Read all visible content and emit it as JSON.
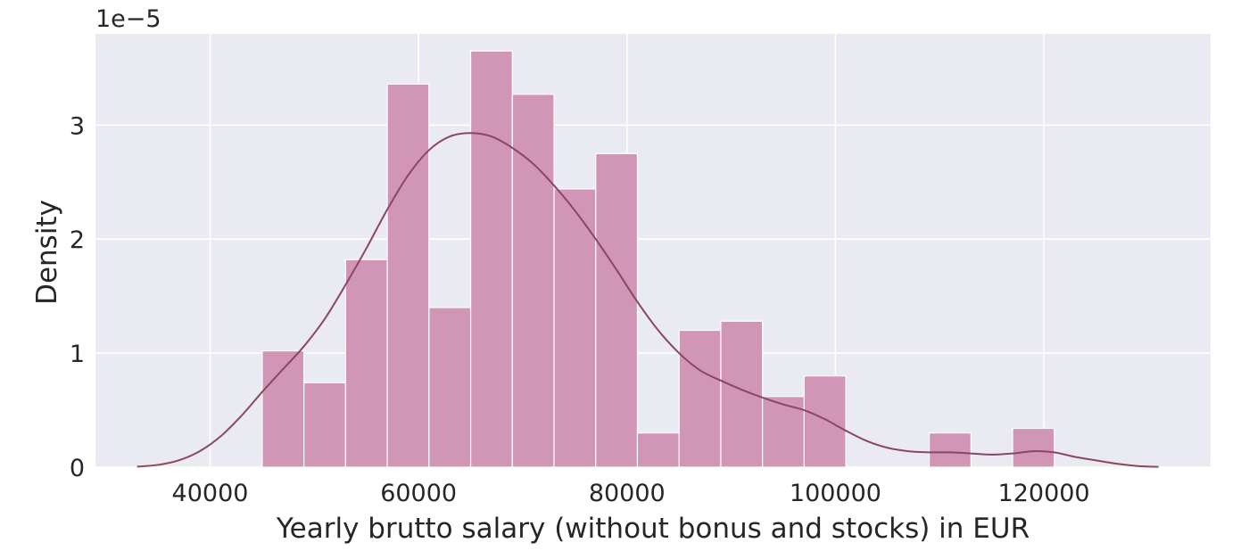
{
  "chart_data": {
    "type": "bar",
    "subtype": "histogram with kde line",
    "title": "",
    "xlabel": "Yearly brutto salary (without bonus and stocks) in EUR",
    "ylabel": "Density",
    "y_offset_label": "1e−5",
    "y_scale_note": "1e-5",
    "xlim": [
      29000,
      136000
    ],
    "ylim": [
      0,
      3.8
    ],
    "x_ticks": [
      40000,
      60000,
      80000,
      100000,
      120000
    ],
    "y_ticks": [
      0,
      1,
      2,
      3
    ],
    "x_tick_labels": [
      "40000",
      "60000",
      "80000",
      "100000",
      "120000"
    ],
    "y_tick_labels": [
      "0",
      "1",
      "2",
      "3"
    ],
    "grid": true,
    "legend": "none",
    "bins": [
      {
        "x0": 45000,
        "x1": 49000,
        "density": 1.02
      },
      {
        "x0": 49000,
        "x1": 53000,
        "density": 0.74
      },
      {
        "x0": 53000,
        "x1": 57000,
        "density": 1.82
      },
      {
        "x0": 57000,
        "x1": 61000,
        "density": 3.36
      },
      {
        "x0": 61000,
        "x1": 65000,
        "density": 1.4
      },
      {
        "x0": 65000,
        "x1": 69000,
        "density": 3.65
      },
      {
        "x0": 69000,
        "x1": 73000,
        "density": 3.27
      },
      {
        "x0": 73000,
        "x1": 77000,
        "density": 2.44
      },
      {
        "x0": 77000,
        "x1": 81000,
        "density": 2.75
      },
      {
        "x0": 81000,
        "x1": 85000,
        "density": 0.3
      },
      {
        "x0": 85000,
        "x1": 89000,
        "density": 1.2
      },
      {
        "x0": 89000,
        "x1": 93000,
        "density": 1.28
      },
      {
        "x0": 93000,
        "x1": 97000,
        "density": 0.62
      },
      {
        "x0": 97000,
        "x1": 101000,
        "density": 0.8
      },
      {
        "x0": 109000,
        "x1": 113000,
        "density": 0.3
      },
      {
        "x0": 117000,
        "x1": 121000,
        "density": 0.34
      }
    ],
    "kde": {
      "x": [
        33000,
        35000,
        37000,
        39000,
        41000,
        43000,
        45000,
        47000,
        49000,
        51000,
        53000,
        55000,
        57000,
        59000,
        61000,
        63000,
        65000,
        67000,
        69000,
        71000,
        73000,
        75000,
        77000,
        79000,
        81000,
        83000,
        85000,
        87000,
        89000,
        91000,
        93000,
        95000,
        97000,
        99000,
        101000,
        103000,
        105000,
        107000,
        109000,
        111000,
        113000,
        115000,
        117000,
        119000,
        121000,
        123000,
        125000,
        127000,
        129000,
        131000
      ],
      "y": [
        0.005,
        0.02,
        0.06,
        0.14,
        0.27,
        0.45,
        0.66,
        0.86,
        1.06,
        1.3,
        1.6,
        1.92,
        2.26,
        2.56,
        2.78,
        2.9,
        2.93,
        2.9,
        2.8,
        2.66,
        2.47,
        2.25,
        2.0,
        1.73,
        1.45,
        1.2,
        1.0,
        0.85,
        0.76,
        0.68,
        0.61,
        0.55,
        0.5,
        0.42,
        0.32,
        0.23,
        0.17,
        0.14,
        0.13,
        0.13,
        0.12,
        0.11,
        0.12,
        0.14,
        0.13,
        0.09,
        0.06,
        0.03,
        0.01,
        0.003
      ]
    },
    "colors": {
      "bar_fill": "#D195B5",
      "bar_edge": "#FFFFFF",
      "kde_line": "#8B4664",
      "plot_background": "#EAEAF2",
      "grid": "#FFFFFF",
      "text": "#262626"
    }
  }
}
